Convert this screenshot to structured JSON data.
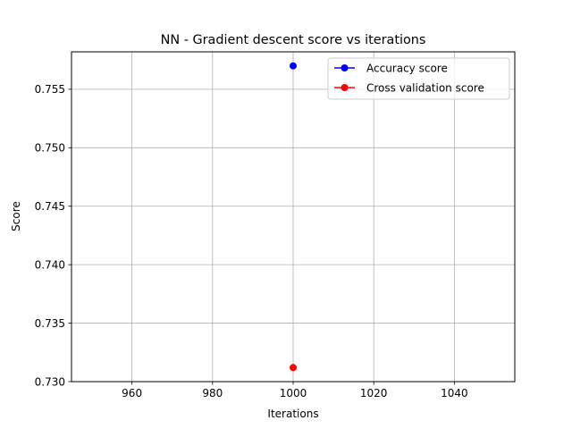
{
  "chart_data": {
    "type": "line",
    "title": "NN - Gradient descent score vs iterations",
    "xlabel": "Iterations",
    "ylabel": "Score",
    "xlim": [
      945,
      1055
    ],
    "ylim": [
      0.73,
      0.7582
    ],
    "xticks": [
      960,
      980,
      1000,
      1020,
      1040
    ],
    "xtick_labels": [
      "960",
      "980",
      "1000",
      "1020",
      "1040"
    ],
    "yticks": [
      0.73,
      0.735,
      0.74,
      0.745,
      0.75,
      0.755
    ],
    "ytick_labels": [
      "0.730",
      "0.735",
      "0.740",
      "0.745",
      "0.750",
      "0.755"
    ],
    "grid": true,
    "legend_position": "top-right",
    "series": [
      {
        "name": "Accuracy score",
        "color": "#0000ff",
        "x": [
          1000
        ],
        "y": [
          0.757
        ]
      },
      {
        "name": "Cross validation score",
        "color": "#ff0000",
        "x": [
          1000
        ],
        "y": [
          0.7312
        ]
      }
    ]
  }
}
